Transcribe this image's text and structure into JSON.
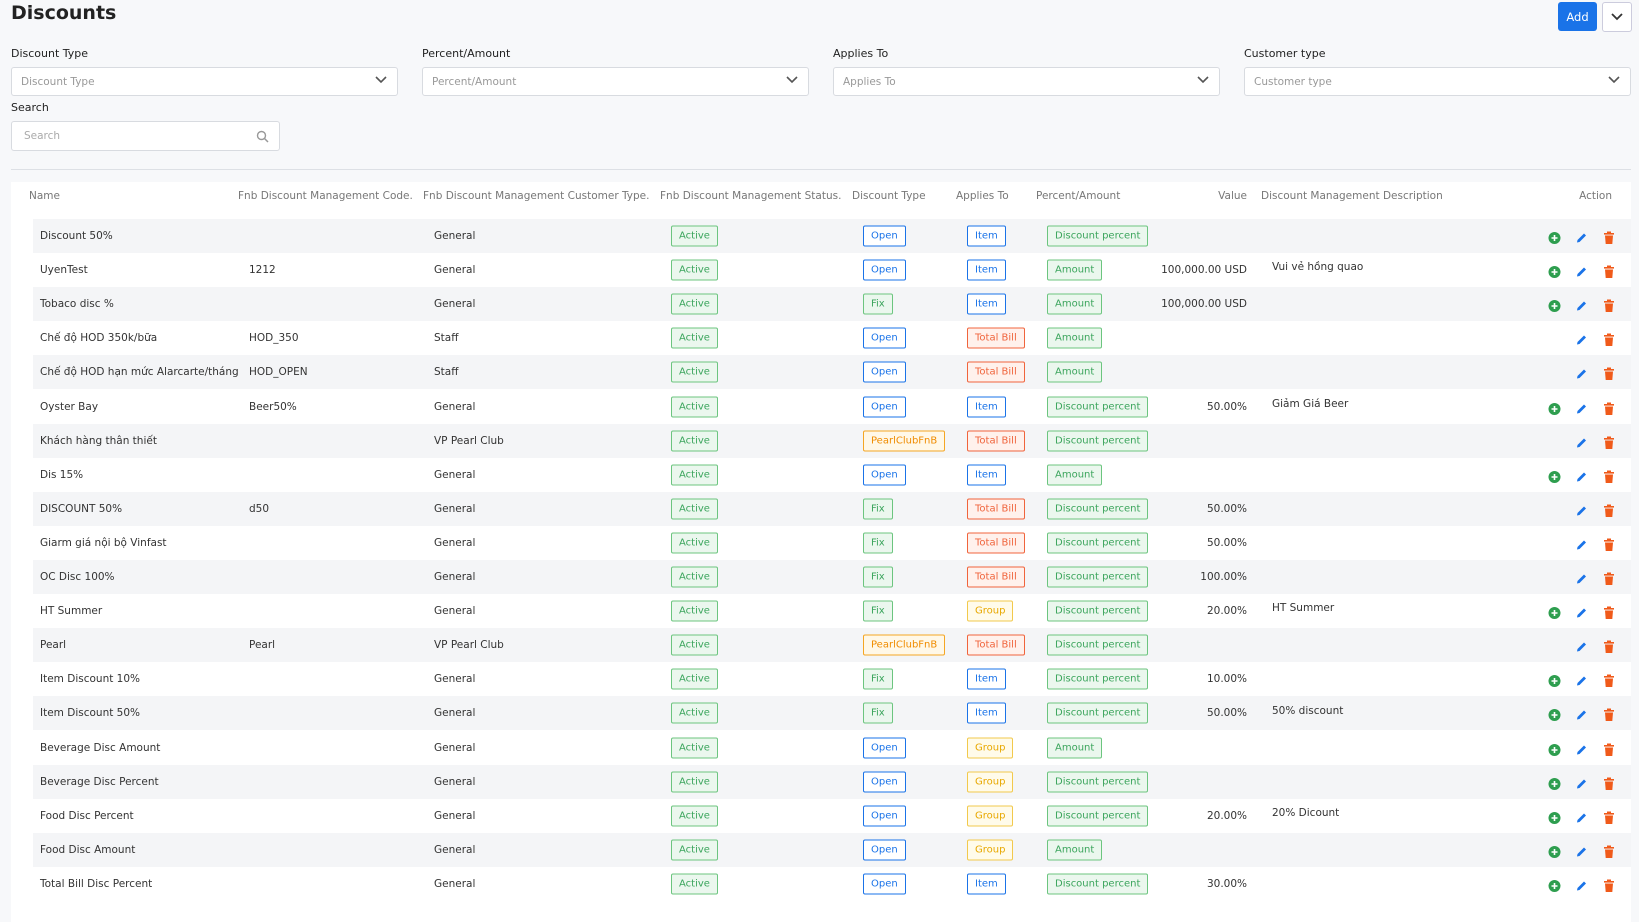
{
  "header": {
    "title": "Discounts",
    "add_button": "Add"
  },
  "filters": [
    {
      "label": "Discount Type",
      "placeholder": "Discount Type"
    },
    {
      "label": "Percent/Amount",
      "placeholder": "Percent/Amount"
    },
    {
      "label": "Applies To",
      "placeholder": "Applies To"
    },
    {
      "label": "Customer type",
      "placeholder": "Customer type"
    }
  ],
  "search": {
    "label": "Search",
    "placeholder": "Search"
  },
  "table": {
    "columns": [
      "Name",
      "Fnb Discount Management Code.",
      "Fnb Discount Management Customer Type.",
      "Fnb Discount Management Status.",
      "Discount Type",
      "Applies To",
      "Percent/Amount",
      "Value",
      "Discount Management Description",
      "Action"
    ],
    "badge_colors": {
      "Active": "green",
      "Open": "blue",
      "Fix": "green",
      "PearlClubFnB": "orange",
      "Item": "blue",
      "Total Bill": "red",
      "Group": "yellow",
      "Amount": "green",
      "Discount percent": "green"
    },
    "rows": [
      {
        "name": "Discount 50%",
        "code": null,
        "customer_type": "General",
        "status": "Active",
        "discount_type": "Open",
        "applies_to": "Item",
        "percent_amount": "Discount percent",
        "value": null,
        "description": null,
        "add_action": true
      },
      {
        "name": "UyenTest",
        "code": "1212",
        "customer_type": "General",
        "status": "Active",
        "discount_type": "Open",
        "applies_to": "Item",
        "percent_amount": "Amount",
        "value": "100,000.00 USD",
        "description": "Vui vẻ hồng quao",
        "add_action": true
      },
      {
        "name": "Tobaco disc %",
        "code": null,
        "customer_type": "General",
        "status": "Active",
        "discount_type": "Fix",
        "applies_to": "Item",
        "percent_amount": "Amount",
        "value": "100,000.00 USD",
        "description": null,
        "add_action": true
      },
      {
        "name": "Chế độ HOD 350k/bữa",
        "code": "HOD_350",
        "customer_type": "Staff",
        "status": "Active",
        "discount_type": "Open",
        "applies_to": "Total Bill",
        "percent_amount": "Amount",
        "value": null,
        "description": null,
        "add_action": false
      },
      {
        "name": "Chế độ HOD hạn mức Alarcarte/tháng",
        "code": "HOD_OPEN",
        "customer_type": "Staff",
        "status": "Active",
        "discount_type": "Open",
        "applies_to": "Total Bill",
        "percent_amount": "Amount",
        "value": null,
        "description": null,
        "add_action": false
      },
      {
        "name": "Oyster Bay",
        "code": "Beer50%",
        "customer_type": "General",
        "status": "Active",
        "discount_type": "Open",
        "applies_to": "Item",
        "percent_amount": "Discount percent",
        "value": "50.00%",
        "description": "Giảm Giá Beer",
        "add_action": true
      },
      {
        "name": "Khách hàng thân thiết",
        "code": null,
        "customer_type": "VP Pearl Club",
        "status": "Active",
        "discount_type": "PearlClubFnB",
        "applies_to": "Total Bill",
        "percent_amount": "Discount percent",
        "value": null,
        "description": null,
        "add_action": false
      },
      {
        "name": "Dis 15%",
        "code": null,
        "customer_type": "General",
        "status": "Active",
        "discount_type": "Open",
        "applies_to": "Item",
        "percent_amount": "Amount",
        "value": null,
        "description": null,
        "add_action": true
      },
      {
        "name": "DISCOUNT 50%",
        "code": "d50",
        "customer_type": "General",
        "status": "Active",
        "discount_type": "Fix",
        "applies_to": "Total Bill",
        "percent_amount": "Discount percent",
        "value": "50.00%",
        "description": null,
        "add_action": false
      },
      {
        "name": "Giarm giá nội bộ Vinfast",
        "code": null,
        "customer_type": "General",
        "status": "Active",
        "discount_type": "Fix",
        "applies_to": "Total Bill",
        "percent_amount": "Discount percent",
        "value": "50.00%",
        "description": null,
        "add_action": false
      },
      {
        "name": "OC Disc 100%",
        "code": null,
        "customer_type": "General",
        "status": "Active",
        "discount_type": "Fix",
        "applies_to": "Total Bill",
        "percent_amount": "Discount percent",
        "value": "100.00%",
        "description": null,
        "add_action": false
      },
      {
        "name": "HT Summer",
        "code": null,
        "customer_type": "General",
        "status": "Active",
        "discount_type": "Fix",
        "applies_to": "Group",
        "percent_amount": "Discount percent",
        "value": "20.00%",
        "description": "HT Summer",
        "add_action": true
      },
      {
        "name": "Pearl",
        "code": "Pearl",
        "customer_type": "VP Pearl Club",
        "status": "Active",
        "discount_type": "PearlClubFnB",
        "applies_to": "Total Bill",
        "percent_amount": "Discount percent",
        "value": null,
        "description": null,
        "add_action": false
      },
      {
        "name": "Item Discount 10%",
        "code": null,
        "customer_type": "General",
        "status": "Active",
        "discount_type": "Fix",
        "applies_to": "Item",
        "percent_amount": "Discount percent",
        "value": "10.00%",
        "description": null,
        "add_action": true
      },
      {
        "name": "Item Discount 50%",
        "code": null,
        "customer_type": "General",
        "status": "Active",
        "discount_type": "Fix",
        "applies_to": "Item",
        "percent_amount": "Discount percent",
        "value": "50.00%",
        "description": "50% discount",
        "add_action": true
      },
      {
        "name": "Beverage Disc Amount",
        "code": null,
        "customer_type": "General",
        "status": "Active",
        "discount_type": "Open",
        "applies_to": "Group",
        "percent_amount": "Amount",
        "value": null,
        "description": null,
        "add_action": true
      },
      {
        "name": "Beverage Disc Percent",
        "code": null,
        "customer_type": "General",
        "status": "Active",
        "discount_type": "Open",
        "applies_to": "Group",
        "percent_amount": "Discount percent",
        "value": null,
        "description": null,
        "add_action": true
      },
      {
        "name": "Food Disc Percent",
        "code": null,
        "customer_type": "General",
        "status": "Active",
        "discount_type": "Open",
        "applies_to": "Group",
        "percent_amount": "Discount percent",
        "value": "20.00%",
        "description": "20% Dicount",
        "add_action": true
      },
      {
        "name": "Food Disc Amount",
        "code": null,
        "customer_type": "General",
        "status": "Active",
        "discount_type": "Open",
        "applies_to": "Group",
        "percent_amount": "Amount",
        "value": null,
        "description": null,
        "add_action": true
      },
      {
        "name": "Total Bill Disc Percent",
        "code": null,
        "customer_type": "General",
        "status": "Active",
        "discount_type": "Open",
        "applies_to": "Item",
        "percent_amount": "Discount percent",
        "value": "30.00%",
        "description": null,
        "add_action": true
      }
    ]
  }
}
